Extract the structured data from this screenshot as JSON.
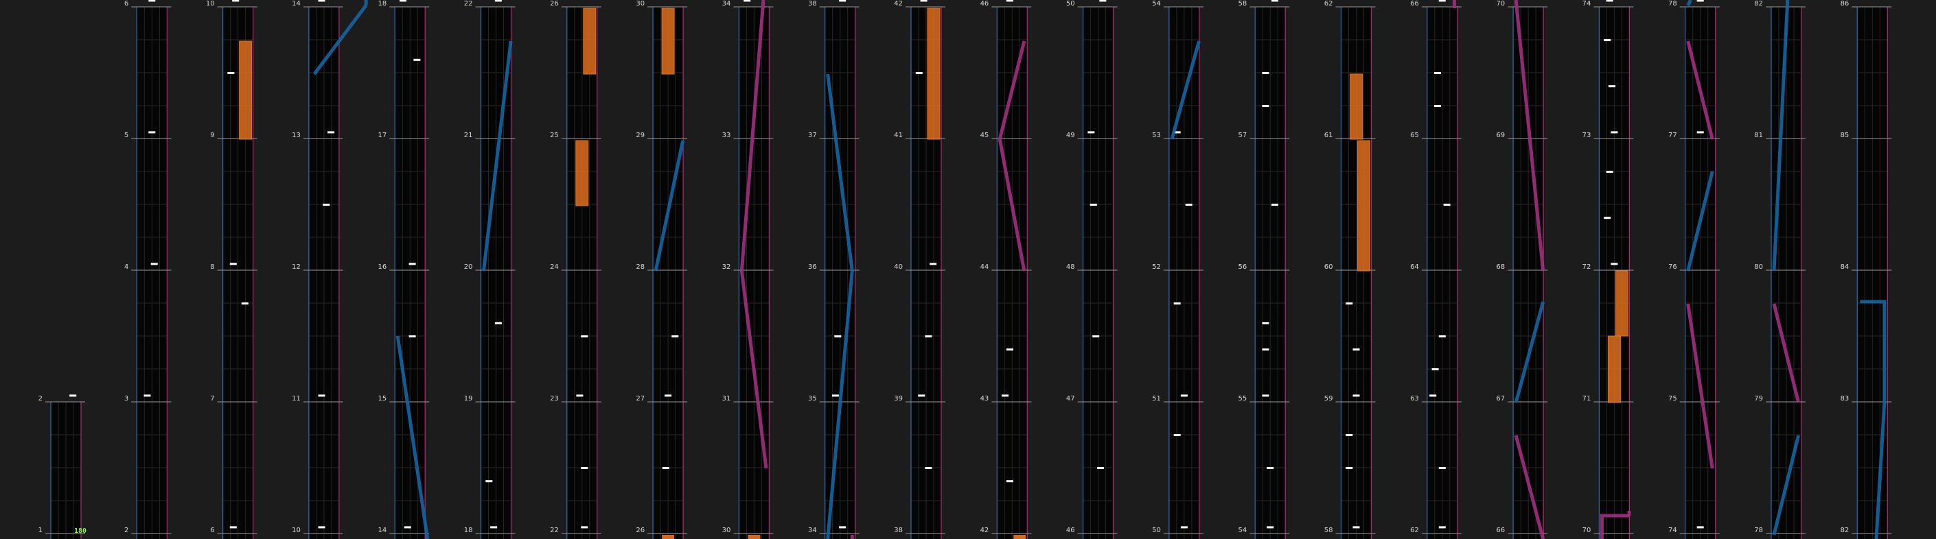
{
  "bpm_label": "180",
  "colors": {
    "background": "#1c1c1c",
    "lane_bg": "#050505",
    "grid": "#262626",
    "measure_line": "#9a9a9a",
    "left_border": "#2d6fb0",
    "right_border": "#b02a74",
    "note": "#ffffff",
    "laser_left": "#1565a0",
    "laser_right": "#a03080",
    "fx": "#d2691e",
    "bpm": "#80ff20"
  },
  "columns": [
    {
      "index": 0,
      "measures": [
        1,
        2
      ]
    },
    {
      "index": 1,
      "measures": [
        2,
        3,
        4,
        5,
        6
      ]
    },
    {
      "index": 2,
      "measures": [
        6,
        7,
        8,
        9,
        10
      ]
    },
    {
      "index": 3,
      "measures": [
        10,
        11,
        12,
        13,
        14
      ]
    },
    {
      "index": 4,
      "measures": [
        14,
        15,
        16,
        17,
        18
      ]
    },
    {
      "index": 5,
      "measures": [
        18,
        19,
        20,
        21,
        22
      ]
    },
    {
      "index": 6,
      "measures": [
        22,
        23,
        24,
        25,
        26
      ]
    },
    {
      "index": 7,
      "measures": [
        26,
        27,
        28,
        29,
        30
      ]
    },
    {
      "index": 8,
      "measures": [
        30,
        31,
        32,
        33,
        34
      ]
    },
    {
      "index": 9,
      "measures": [
        34,
        35,
        36,
        37,
        38
      ]
    },
    {
      "index": 10,
      "measures": [
        38,
        39,
        40,
        41,
        42
      ]
    },
    {
      "index": 11,
      "measures": [
        42,
        43,
        44,
        45,
        46
      ]
    },
    {
      "index": 12,
      "measures": [
        46,
        47,
        48,
        49,
        50
      ]
    },
    {
      "index": 13,
      "measures": [
        50,
        51,
        52,
        53,
        54
      ]
    },
    {
      "index": 14,
      "measures": [
        54,
        55,
        56,
        57,
        58
      ]
    },
    {
      "index": 15,
      "measures": [
        58,
        59,
        60,
        61,
        62
      ]
    },
    {
      "index": 16,
      "measures": [
        62,
        63,
        64,
        65,
        66
      ]
    },
    {
      "index": 17,
      "measures": [
        66,
        67,
        68,
        69,
        70
      ]
    },
    {
      "index": 18,
      "measures": [
        70,
        71,
        72,
        73,
        74
      ]
    },
    {
      "index": 19,
      "measures": [
        74,
        75,
        76,
        77,
        78
      ]
    },
    {
      "index": 20,
      "measures": [
        78,
        79,
        80,
        81,
        82
      ]
    },
    {
      "index": 21,
      "measures": [
        82,
        83,
        84,
        85,
        86
      ]
    }
  ]
}
